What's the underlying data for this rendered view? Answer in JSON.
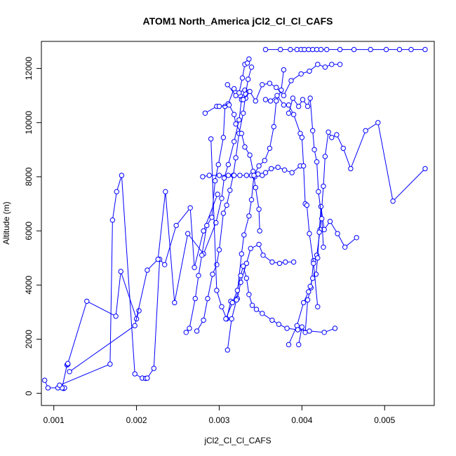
{
  "chart_data": {
    "type": "line",
    "title": "ATOM1 North_America jCl2_Cl_Cl_CAFS",
    "xlabel": "jCl2_Cl_Cl_CAFS",
    "ylabel": "Altitude (m)",
    "xlim": [
      0.00085,
      0.0056
    ],
    "ylim": [
      -450,
      13000
    ],
    "x_ticks": [
      0.001,
      0.002,
      0.003,
      0.004,
      0.005
    ],
    "x_tick_labels": [
      "0.001",
      "0.002",
      "0.003",
      "0.004",
      "0.005"
    ],
    "y_ticks": [
      0,
      2000,
      4000,
      6000,
      8000,
      10000,
      12000
    ],
    "y_tick_labels": [
      "0",
      "2000",
      "4000",
      "6000",
      "8000",
      "10000",
      "12000"
    ],
    "grid": false,
    "markers": "open-circle",
    "color": "#0000ff",
    "series": [
      {
        "x": [
          0.00089,
          0.00093,
          0.00105,
          0.00112,
          0.00113,
          0.0011,
          0.00116,
          0.00117,
          0.00117,
          0.0014,
          0.00175,
          0.00181,
          0.002,
          0.00203
        ],
        "y": [
          480,
          200,
          200,
          180,
          200,
          200,
          1050,
          1070,
          1100,
          3400,
          2850,
          4500,
          2750,
          3050
        ]
      },
      {
        "x": [
          0.00107,
          0.00168,
          0.00171,
          0.00176,
          0.00182,
          0.00198,
          0.00207,
          0.00211,
          0.00213,
          0.00221,
          0.00228,
          0.00234,
          0.00248,
          0.00265,
          0.0027,
          0.00281,
          0.00298
        ],
        "y": [
          300,
          1080,
          6400,
          7450,
          8050,
          720,
          560,
          550,
          560,
          920,
          4950,
          4750,
          6200,
          6850,
          4650,
          6000,
          7350
        ]
      },
      {
        "x": [
          0.00119,
          0.00198,
          0.00213,
          0.00226,
          0.00235,
          0.00246,
          0.00262,
          0.00281,
          0.00296,
          0.00303,
          0.00306,
          0.00311,
          0.00318,
          0.00324,
          0.00327,
          0.00329,
          0.00331,
          0.00332
        ],
        "y": [
          800,
          2500,
          4550,
          4950,
          7450,
          3350,
          5900,
          5150,
          6300,
          7200,
          7950,
          8450,
          9300,
          10100,
          10850,
          11100,
          11200,
          10900
        ]
      },
      {
        "x": [
          0.0026,
          0.00264,
          0.00271,
          0.00275,
          0.00279,
          0.00285,
          0.00291,
          0.00295,
          0.00299,
          0.00305,
          0.00307,
          0.00311,
          0.00318,
          0.00324,
          0.00328,
          0.00331,
          0.00334,
          0.00336
        ],
        "y": [
          2250,
          2400,
          3500,
          4350,
          5100,
          6200,
          6500,
          7850,
          8450,
          9450,
          10600,
          10700,
          11250,
          11100,
          11650,
          12150,
          12200,
          12350
        ]
      },
      {
        "x": [
          0.00273,
          0.00281,
          0.00286,
          0.00292,
          0.00297,
          0.003,
          0.00305,
          0.00309,
          0.00313,
          0.00317,
          0.0032,
          0.00324,
          0.00329,
          0.00332,
          0.00335,
          0.00339
        ],
        "y": [
          2300,
          2700,
          3500,
          4400,
          4750,
          5300,
          6650,
          6950,
          7500,
          8050,
          8700,
          9600,
          10350,
          11050,
          11600,
          12050
        ]
      },
      {
        "x": [
          0.0028,
          0.00288,
          0.003,
          0.00311,
          0.00318,
          0.00325,
          0.00333,
          0.00339,
          0.00343,
          0.00347,
          0.00352,
          0.00356,
          0.00363,
          0.00371,
          0.00379,
          0.00388,
          0.00398
        ],
        "y": [
          8000,
          8050,
          8050,
          8050,
          8050,
          8050,
          8050,
          8050,
          8000,
          8100,
          8050,
          8150,
          8300,
          8350,
          8250,
          8150,
          8400
        ]
      },
      {
        "x": [
          0.00283,
          0.00297,
          0.003,
          0.00312,
          0.00318,
          0.0032,
          0.00327,
          0.00331,
          0.00337,
          0.00341,
          0.00344,
          0.00348,
          0.00349
        ],
        "y": [
          10350,
          10600,
          10600,
          10650,
          10300,
          9950,
          9600,
          9100,
          8800,
          8200,
          7600,
          6800,
          6000
        ]
      },
      {
        "x": [
          0.0029,
          0.00297,
          0.00303,
          0.00309,
          0.00314,
          0.00322,
          0.00326,
          0.00333,
          0.00338,
          0.00348,
          0.00353,
          0.00364,
          0.00373,
          0.0038,
          0.0039
        ],
        "y": [
          9400,
          3800,
          3200,
          2750,
          3400,
          3500,
          4100,
          4800,
          5350,
          5500,
          5100,
          4850,
          4800,
          4850,
          4850
        ]
      },
      {
        "x": [
          0.0031,
          0.00315,
          0.00321,
          0.00327,
          0.0033,
          0.00336,
          0.00339,
          0.00342,
          0.00348,
          0.00355,
          0.00361,
          0.00366,
          0.00369,
          0.00375,
          0.00378
        ],
        "y": [
          1600,
          2750,
          3450,
          5150,
          5850,
          6550,
          7150,
          8050,
          8400,
          8600,
          9050,
          9850,
          10800,
          11200,
          11950
        ]
      },
      {
        "x": [
          0.00356,
          0.00374,
          0.00386,
          0.00394,
          0.00399,
          0.00403,
          0.00408,
          0.00413,
          0.00418,
          0.00423,
          0.0043,
          0.00446,
          0.00463,
          0.00483,
          0.00502,
          0.00518,
          0.00532,
          0.00549
        ],
        "y": [
          12700,
          12700,
          12700,
          12700,
          12700,
          12700,
          12700,
          12700,
          12700,
          12700,
          12700,
          12700,
          12700,
          12700,
          12700,
          12700,
          12700,
          12700
        ]
      },
      {
        "x": [
          0.00396,
          0.004,
          0.00404,
          0.00407,
          0.00411,
          0.00414,
          0.00418,
          0.00422,
          0.00426,
          0.00428,
          0.00432,
          0.00436,
          0.00442,
          0.0045,
          0.00459,
          0.00477,
          0.00492,
          0.0051,
          0.00549
        ],
        "y": [
          1800,
          2450,
          2250,
          3450,
          3900,
          4900,
          5100,
          6050,
          7650,
          8750,
          9650,
          9450,
          9550,
          9050,
          8300,
          9700,
          10000,
          7100,
          8300
        ]
      },
      {
        "x": [
          0.00384,
          0.00394,
          0.00402,
          0.00408,
          0.0041,
          0.00413,
          0.00417,
          0.00419,
          0.00421,
          0.00423,
          0.00427,
          0.00434,
          0.00443,
          0.00452,
          0.00466
        ],
        "y": [
          1800,
          2500,
          3350,
          3750,
          3950,
          4250,
          4400,
          5000,
          5950,
          6900,
          6050,
          6350,
          5900,
          5400,
          5750
        ]
      },
      {
        "x": [
          0.00384,
          0.00389,
          0.00396,
          0.00401,
          0.00407,
          0.0041,
          0.00413,
          0.00415,
          0.00418,
          0.0042,
          0.00424,
          0.00426
        ],
        "y": [
          10350,
          10900,
          10600,
          10850,
          10600,
          10900,
          9700,
          9000,
          8550,
          7450,
          6450,
          5400
        ]
      },
      {
        "x": [
          0.00356,
          0.00362,
          0.0037,
          0.00378,
          0.00384,
          0.0039,
          0.00398,
          0.004,
          0.00402,
          0.00404,
          0.00406,
          0.00409,
          0.00414,
          0.00419
        ],
        "y": [
          10850,
          10800,
          11000,
          10650,
          10650,
          10300,
          9600,
          9450,
          8400,
          7000,
          6950,
          5900,
          4800,
          3200
        ]
      },
      {
        "x": [
          0.0031,
          0.0032,
          0.00329,
          0.00337,
          0.00344,
          0.00352,
          0.00361,
          0.00369,
          0.00378,
          0.00387,
          0.00399,
          0.00409,
          0.00419,
          0.00428,
          0.00436,
          0.00446
        ],
        "y": [
          11400,
          11000,
          10850,
          11150,
          10800,
          11400,
          11450,
          11300,
          11000,
          11550,
          11800,
          11900,
          12150,
          12050,
          12150,
          12150
        ]
      },
      {
        "x": [
          0.00308,
          0.00316,
          0.00322,
          0.00326,
          0.00329,
          0.00333,
          0.00336,
          0.0034,
          0.00345,
          0.00352,
          0.00364,
          0.00372,
          0.00382,
          0.00395,
          0.00409,
          0.00427,
          0.0044
        ],
        "y": [
          2750,
          3350,
          3800,
          4350,
          4700,
          4250,
          3650,
          3250,
          3100,
          2950,
          2700,
          2550,
          2400,
          2350,
          2300,
          2250,
          2400
        ]
      }
    ]
  }
}
